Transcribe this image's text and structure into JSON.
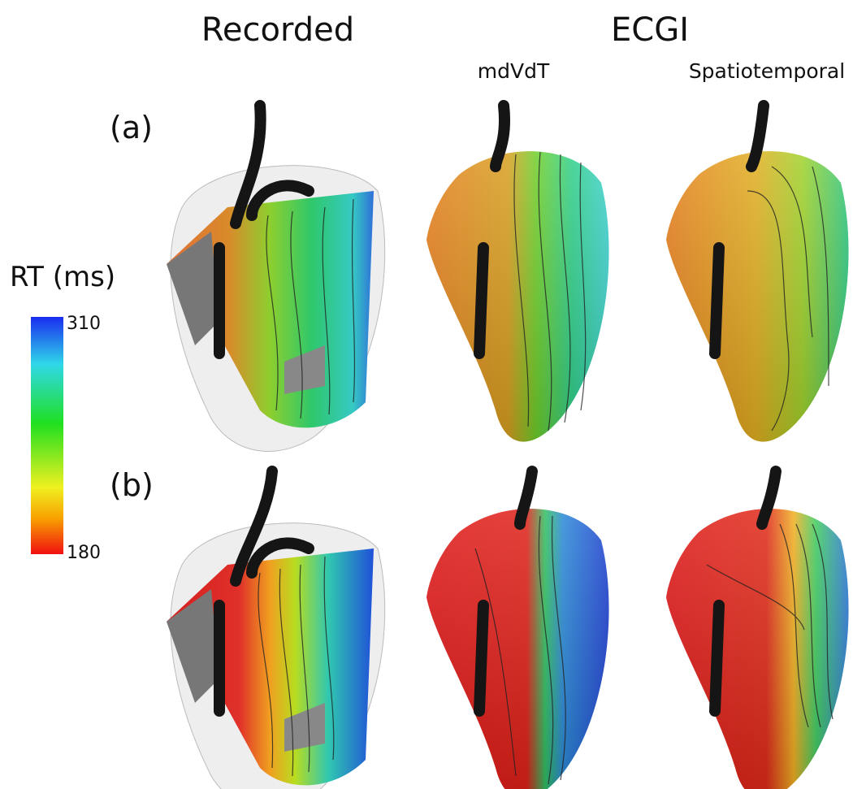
{
  "header": {
    "recorded": "Recorded",
    "ecgi": "ECGI",
    "methods": [
      "mdVdT",
      "Spatiotemporal"
    ]
  },
  "rows": [
    "(a)",
    "(b)"
  ],
  "colorbar": {
    "title": "RT (ms)",
    "max": 310,
    "min": 180
  }
}
